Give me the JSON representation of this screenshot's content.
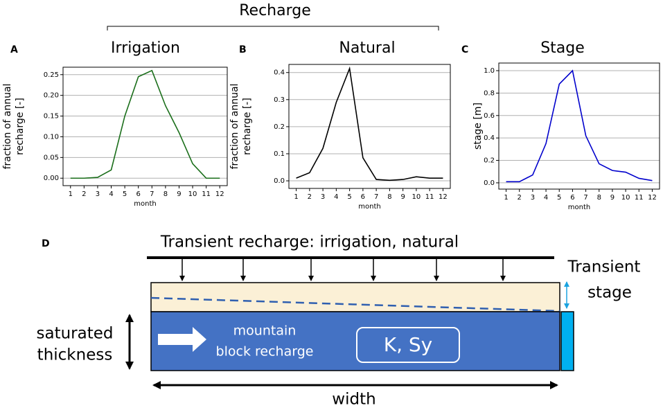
{
  "header": {
    "title": "Recharge",
    "panels": [
      "A",
      "B",
      "C",
      "D"
    ]
  },
  "chart_data": [
    {
      "type": "line",
      "title": "Irrigation",
      "xlabel": "month",
      "ylabel": [
        "fraction of annual",
        "recharge [-]"
      ],
      "x": [
        1,
        2,
        3,
        4,
        5,
        6,
        7,
        8,
        9,
        10,
        11,
        12
      ],
      "series": [
        {
          "color": "#1a6e1a",
          "values": [
            0,
            0,
            0.002,
            0.02,
            0.15,
            0.245,
            0.26,
            0.175,
            0.11,
            0.035,
            0,
            0
          ]
        }
      ],
      "xlim": [
        0.45,
        12.55
      ],
      "xticks": [
        1,
        2,
        3,
        4,
        5,
        6,
        7,
        8,
        9,
        10,
        11,
        12
      ],
      "ylim": [
        -0.018,
        0.268
      ],
      "yticks": [
        {
          "value": 0,
          "label": "0.00"
        },
        {
          "value": 0.05,
          "label": "0.05"
        },
        {
          "value": 0.1,
          "label": "0.10"
        },
        {
          "value": 0.15,
          "label": "0.15"
        },
        {
          "value": 0.2,
          "label": "0.20"
        },
        {
          "value": 0.25,
          "label": "0.25"
        }
      ],
      "grid": true
    },
    {
      "type": "line",
      "title": "Natural",
      "xlabel": "month",
      "ylabel": [
        "fraction of annual",
        "recharge [-]"
      ],
      "x": [
        1,
        2,
        3,
        4,
        5,
        6,
        7,
        8,
        9,
        10,
        11,
        12
      ],
      "series": [
        {
          "color": "#000000",
          "values": [
            0.01,
            0.03,
            0.12,
            0.29,
            0.415,
            0.085,
            0.005,
            0.002,
            0.005,
            0.015,
            0.01,
            0.01
          ]
        }
      ],
      "xlim": [
        0.45,
        12.55
      ],
      "xticks": [
        1,
        2,
        3,
        4,
        5,
        6,
        7,
        8,
        9,
        10,
        11,
        12
      ],
      "ylim": [
        -0.028,
        0.43
      ],
      "yticks": [
        {
          "value": 0,
          "label": "0.0"
        },
        0.1,
        0.2,
        0.3,
        0.4
      ],
      "grid": true
    },
    {
      "type": "line",
      "title": "Stage",
      "xlabel": "month",
      "ylabel": [
        "stage [m]"
      ],
      "x": [
        1,
        2,
        3,
        4,
        5,
        6,
        7,
        8,
        9,
        10,
        11,
        12
      ],
      "series": [
        {
          "color": "#0000cc",
          "values": [
            0.01,
            0.01,
            0.07,
            0.35,
            0.88,
            1.0,
            0.42,
            0.17,
            0.11,
            0.095,
            0.04,
            0.02
          ]
        }
      ],
      "xlim": [
        0.45,
        12.55
      ],
      "xticks": [
        1,
        2,
        3,
        4,
        5,
        6,
        7,
        8,
        9,
        10,
        11,
        12
      ],
      "ylim": [
        -0.056,
        1.068
      ],
      "yticks": [
        {
          "value": 0,
          "label": "0.0"
        },
        0.2,
        0.4,
        0.6,
        0.8,
        {
          "value": 1,
          "label": "1.0"
        }
      ],
      "grid": true
    }
  ],
  "diagram": {
    "recharge_label": "Transient recharge: irrigation, natural",
    "stage_label": [
      "Transient",
      "stage"
    ],
    "thickness_label": [
      "saturated",
      "thickness"
    ],
    "mountain_label": [
      "mountain",
      "block recharge"
    ],
    "params_label": "K, Sy",
    "width_label": "width"
  }
}
